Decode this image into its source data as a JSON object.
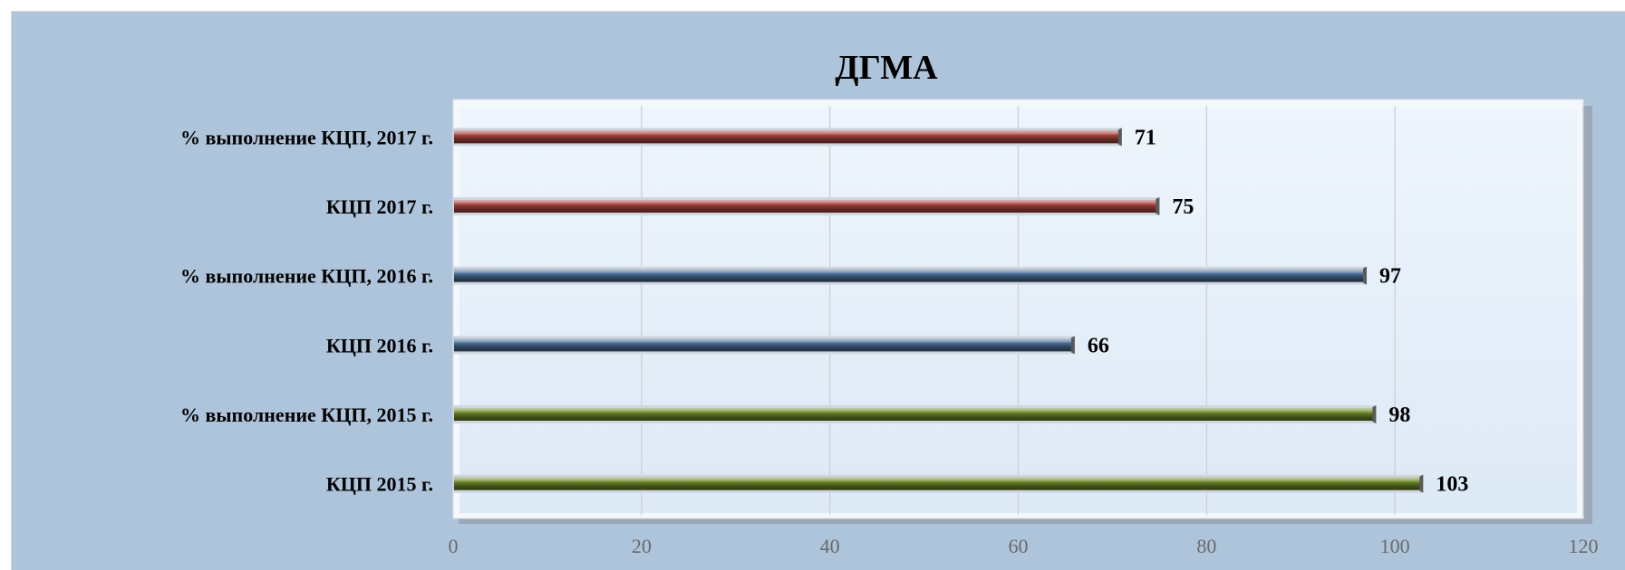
{
  "chart_data": {
    "type": "bar",
    "orientation": "horizontal",
    "title": "ДГМА",
    "categories": [
      "КЦП 2015 г.",
      "% выполнение КЦП, 2015 г.",
      "КЦП 2016 г.",
      "% выполнение КЦП, 2016 г.",
      "КЦП 2017 г.",
      "% выполнение КЦП, 2017 г."
    ],
    "values": [
      103,
      98,
      66,
      97,
      75,
      71
    ],
    "bar_colors": [
      "#6f8a2c",
      "#6f8a2c",
      "#4a6e97",
      "#4a6e97",
      "#a8443e",
      "#a8443e"
    ],
    "xlim": [
      0,
      120
    ],
    "xticks": [
      0,
      20,
      40,
      60,
      80,
      100,
      120
    ],
    "xlabel": "",
    "ylabel": "",
    "grid": true,
    "legend": "none",
    "data_labels": true
  },
  "colors": {
    "background": "#adc4db",
    "plot_area": "#e3eef9",
    "gridline": "#c9ced6"
  }
}
